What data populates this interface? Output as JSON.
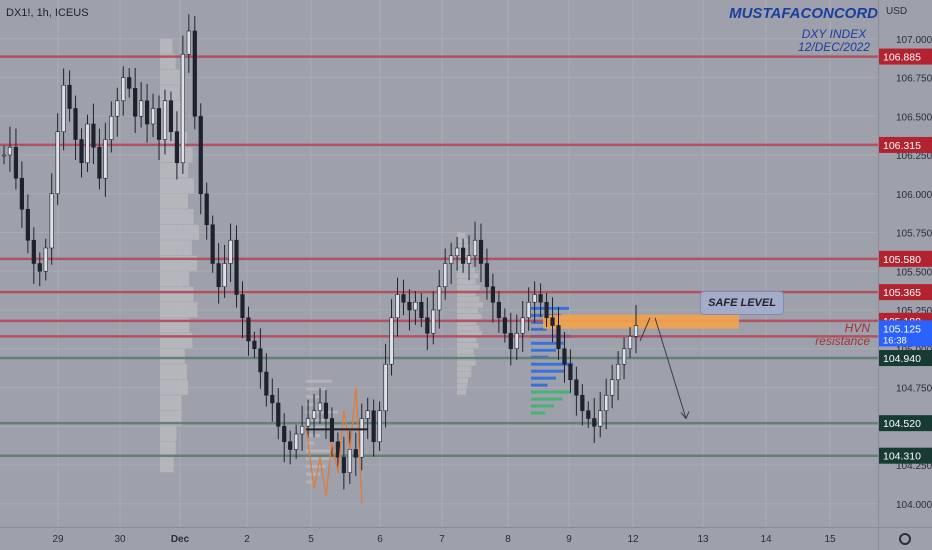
{
  "header": {
    "symbol": "DX1!, 1h, ICEUS",
    "author": "MUSTAFACONCORD",
    "subtitle_line1": "DXY INDEX",
    "subtitle_line2": "12/DEC/2022",
    "currency": "USD"
  },
  "annotations": {
    "safe_level": "SAFE LEVEL",
    "hvn": "HVN",
    "resistance": "resistance"
  },
  "colors": {
    "background": "#9ea1ab",
    "candle": "#1e222d",
    "resistance_line": "#b34a58",
    "support_line": "#5e7d70",
    "resistance_tag": "#b2222f",
    "support_tag": "#173b33",
    "price_tag": "#2962ff",
    "safe_zone": "#f3a24a",
    "volume_profile": "#b8b8be",
    "vp_blue": "#2f6bdb",
    "vp_green": "#3db46d",
    "orange_overlay": "#e07b3c"
  },
  "chart_data": {
    "type": "candlestick",
    "symbol": "DX1!",
    "timeframe": "1h",
    "ylim": [
      103.85,
      107.25
    ],
    "y_ticks": [
      104.0,
      104.25,
      104.5,
      104.75,
      105.0,
      105.25,
      105.5,
      105.75,
      106.0,
      106.25,
      106.5,
      106.75,
      107.0
    ],
    "x_ticks": [
      "29",
      "30",
      "Dec",
      "2",
      "5",
      "6",
      "7",
      "8",
      "9",
      "12",
      "13",
      "14",
      "15"
    ],
    "close_path": [
      106.25,
      106.3,
      106.1,
      105.9,
      105.7,
      105.55,
      105.5,
      105.65,
      106.0,
      106.4,
      106.7,
      106.55,
      106.35,
      106.2,
      106.45,
      106.3,
      106.1,
      106.35,
      106.5,
      106.6,
      106.75,
      106.68,
      106.5,
      106.6,
      106.45,
      106.55,
      106.35,
      106.6,
      106.4,
      106.2,
      106.9,
      107.05,
      106.5,
      106.0,
      105.8,
      105.55,
      105.4,
      105.55,
      105.7,
      105.35,
      105.2,
      105.05,
      105.0,
      104.85,
      104.7,
      104.65,
      104.5,
      104.4,
      104.35,
      104.45,
      104.5,
      104.55,
      104.6,
      104.65,
      104.55,
      104.4,
      104.3,
      104.2,
      104.35,
      104.3,
      104.55,
      104.6,
      104.4,
      104.6,
      104.9,
      105.2,
      105.35,
      105.3,
      105.25,
      105.3,
      105.2,
      105.1,
      105.25,
      105.4,
      105.55,
      105.6,
      105.65,
      105.55,
      105.6,
      105.7,
      105.55,
      105.4,
      105.3,
      105.2,
      105.1,
      105.0,
      105.1,
      105.2,
      105.3,
      105.35,
      105.3,
      105.2,
      105.15,
      105.0,
      104.9,
      104.8,
      104.7,
      104.6,
      104.55,
      104.5,
      104.6,
      104.7,
      104.8,
      104.9,
      105.0,
      105.08,
      105.15
    ],
    "horizontal_levels": [
      {
        "price": "106.885",
        "kind": "resistance"
      },
      {
        "price": "106.315",
        "kind": "resistance"
      },
      {
        "price": "105.580",
        "kind": "resistance"
      },
      {
        "price": "105.365",
        "kind": "resistance"
      },
      {
        "price": "105.180",
        "kind": "resistance"
      },
      {
        "price": "105.080",
        "kind": "resistance"
      },
      {
        "price": "104.940",
        "kind": "support"
      },
      {
        "price": "104.520",
        "kind": "support"
      },
      {
        "price": "104.310",
        "kind": "support"
      }
    ],
    "current_price": {
      "price": "105.125",
      "countdown": "16:38"
    },
    "safe_zone": {
      "from": 105.13,
      "to": 105.22
    },
    "projection": {
      "from": 105.2,
      "to": 104.55
    },
    "grid": true
  }
}
